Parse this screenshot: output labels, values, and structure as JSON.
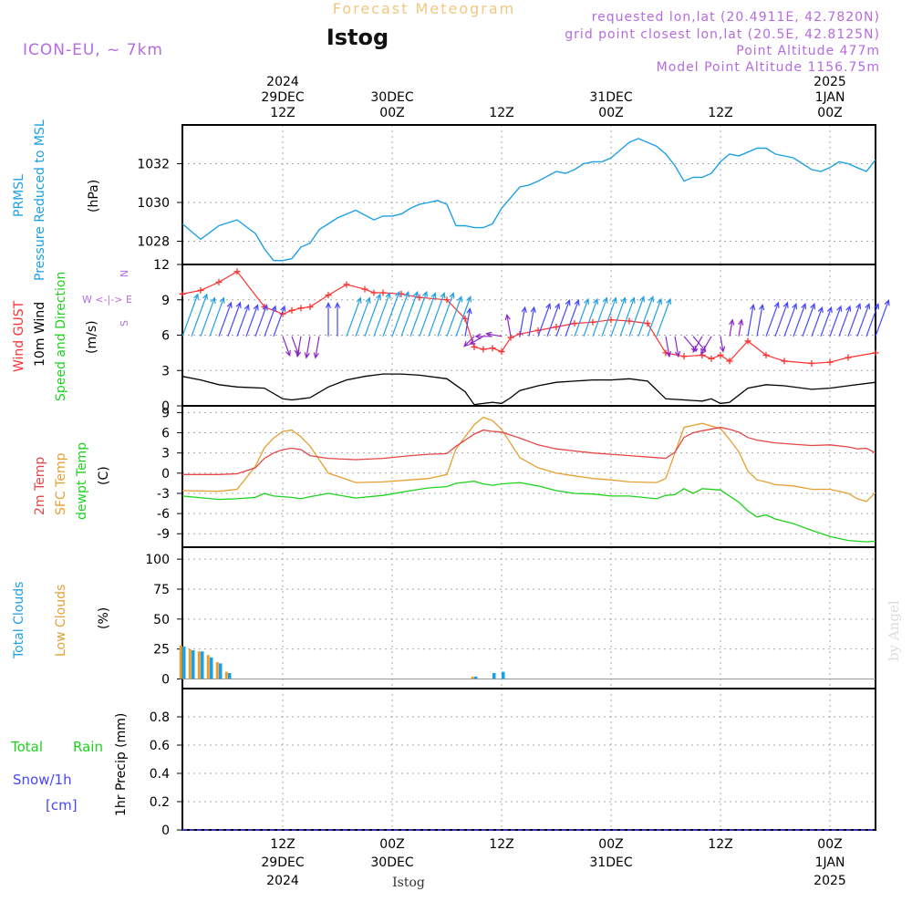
{
  "header": {
    "title": "Forecast Meteogram",
    "station": "Istog",
    "model": "ICON-EU, ~ 7km",
    "requested": "requested lon,lat (20.4911E, 42.7820N)",
    "grid_point": "grid point closest lon,lat (20.5E, 42.8125N)",
    "point_altitude": "Point Altitude 477m",
    "model_altitude": "Model Point Altitude 1156.75m",
    "footer_station": "Istog",
    "credit": "by Angel"
  },
  "time_axis": {
    "top_ticks": [
      {
        "h": 12,
        "lines": [
          "2024",
          "29DEC",
          "12Z"
        ]
      },
      {
        "h": 24,
        "lines": [
          "30DEC",
          "00Z"
        ]
      },
      {
        "h": 36,
        "lines": [
          "12Z"
        ]
      },
      {
        "h": 48,
        "lines": [
          "31DEC",
          "00Z"
        ]
      },
      {
        "h": 60,
        "lines": [
          "12Z"
        ]
      },
      {
        "h": 72,
        "lines": [
          "2025",
          "1JAN",
          "00Z"
        ]
      }
    ],
    "bottom_ticks": [
      {
        "h": 12,
        "lines": [
          "12Z",
          "29DEC",
          "2024"
        ]
      },
      {
        "h": 24,
        "lines": [
          "00Z",
          "30DEC"
        ]
      },
      {
        "h": 36,
        "lines": [
          "12Z"
        ]
      },
      {
        "h": 48,
        "lines": [
          "00Z",
          "31DEC"
        ]
      },
      {
        "h": 60,
        "lines": [
          "12Z"
        ]
      },
      {
        "h": 72,
        "lines": [
          "00Z",
          "1JAN",
          "2025"
        ]
      }
    ],
    "start_hour": 1,
    "end_hour": 77
  },
  "colors": {
    "pressure": "#1ea0e6",
    "gust": "#ff3030",
    "wind": "#000000",
    "temp2m": "#e64646",
    "sfc_temp": "#e6a032",
    "dewpoint": "#1ed21e",
    "total_clouds": "#1ea0e6",
    "low_clouds": "#e6a032",
    "rain": "#1ed21e",
    "snow": "#4646ff",
    "direction_label": "#b56be0"
  },
  "panels": {
    "pressure": {
      "labels": [
        "PRMSL",
        "Pressure Reduced to MSL",
        "(hPa)"
      ]
    },
    "wind": {
      "labels": [
        "Wind GUST",
        "10m Wind",
        "Speed and Direction",
        "(m/s)"
      ],
      "compass": [
        "N",
        "W <-|-> E",
        "S"
      ]
    },
    "temperature": {
      "labels": [
        "2m Temp",
        "SFC Temp",
        "dewpt Temp",
        "(C)"
      ]
    },
    "clouds": {
      "labels": [
        "Total Clouds",
        "Low Clouds",
        "(%)"
      ]
    },
    "precip": {
      "labels": [
        "Total",
        "Rain",
        "Snow/1h",
        "[cm]",
        "1hr Precip (mm)"
      ]
    }
  },
  "chart_data": [
    {
      "type": "line",
      "name": "PRMSL",
      "ylabel": "(hPa)",
      "ylim": [
        1026.8,
        1034
      ],
      "yticks": [
        1028,
        1030,
        1032
      ],
      "x": [
        1,
        3,
        5,
        7,
        9,
        10,
        11,
        12,
        13,
        14,
        15,
        16,
        17,
        18,
        20,
        22,
        23,
        24,
        25,
        26,
        27,
        28,
        29,
        30,
        31,
        32,
        33,
        34,
        35,
        36,
        38,
        39,
        40,
        42,
        43,
        44,
        45,
        46,
        47,
        48,
        49,
        50,
        51,
        52,
        53,
        54,
        55,
        56,
        57,
        58,
        59,
        60,
        61,
        62,
        63,
        64,
        65,
        66,
        67,
        68,
        69,
        70,
        71,
        72,
        73,
        74,
        75,
        76,
        77
      ],
      "series": [
        {
          "name": "PRMSL",
          "values": [
            1028.9,
            1028.1,
            1028.8,
            1029.1,
            1028.4,
            1027.6,
            1027.0,
            1027.0,
            1027.1,
            1027.7,
            1027.9,
            1028.6,
            1028.9,
            1029.2,
            1029.6,
            1029.1,
            1029.3,
            1029.3,
            1029.4,
            1029.7,
            1029.9,
            1030.0,
            1030.1,
            1029.9,
            1028.8,
            1028.8,
            1028.7,
            1028.7,
            1028.9,
            1029.7,
            1030.8,
            1030.9,
            1031.1,
            1031.6,
            1031.5,
            1031.7,
            1032.0,
            1032.1,
            1032.1,
            1032.3,
            1032.7,
            1033.1,
            1033.3,
            1033.1,
            1032.9,
            1032.5,
            1031.9,
            1031.1,
            1031.3,
            1031.3,
            1031.5,
            1032.1,
            1032.5,
            1032.4,
            1032.6,
            1032.8,
            1032.8,
            1032.5,
            1032.4,
            1032.3,
            1032.0,
            1031.7,
            1031.6,
            1031.8,
            1032.1,
            1032.0,
            1031.8,
            1031.6,
            1032.2
          ]
        }
      ]
    },
    {
      "type": "line",
      "name": "wind",
      "ylabel": "(m/s)",
      "ylim": [
        0,
        12
      ],
      "yticks": [
        0,
        3,
        6,
        9,
        12
      ],
      "x": [
        1,
        3,
        5,
        7,
        10,
        12,
        13,
        14,
        15,
        17,
        19,
        21,
        22,
        23,
        25,
        27,
        30,
        32,
        33,
        34,
        35,
        36,
        37,
        38,
        40,
        42,
        44,
        46,
        48,
        50,
        52,
        54,
        56,
        58,
        59,
        60,
        61,
        63,
        65,
        67,
        70,
        72,
        74,
        77
      ],
      "series": [
        {
          "name": "Wind GUST",
          "values": [
            9.5,
            9.8,
            10.5,
            11.4,
            8.4,
            7.8,
            8.1,
            8.3,
            8.4,
            9.4,
            10.3,
            9.9,
            9.6,
            9.6,
            9.5,
            9.2,
            9.0,
            7.4,
            5.0,
            4.8,
            4.9,
            4.6,
            5.8,
            6.1,
            6.4,
            6.7,
            7.0,
            7.1,
            7.3,
            7.2,
            7.0,
            4.5,
            4.2,
            4.3,
            4.0,
            4.3,
            3.8,
            5.5,
            4.3,
            3.8,
            3.6,
            3.7,
            4.1,
            4.5
          ]
        },
        {
          "name": "10m Wind",
          "values": [
            2.5,
            2.2,
            1.8,
            1.6,
            1.5,
            0.6,
            0.5,
            0.6,
            0.7,
            1.6,
            2.2,
            2.5,
            2.6,
            2.7,
            2.7,
            2.6,
            2.3,
            1.2,
            0.1,
            0.2,
            0.3,
            0.2,
            0.7,
            1.3,
            1.7,
            2.0,
            2.1,
            2.2,
            2.2,
            2.3,
            2.1,
            0.6,
            0.5,
            0.4,
            0.6,
            0.2,
            0.3,
            1.5,
            1.8,
            1.7,
            1.4,
            1.5,
            1.7,
            2.0
          ]
        }
      ],
      "direction_deg": [
        200,
        200,
        200,
        200,
        200,
        340,
        340,
        10,
        10,
        180,
        200,
        200,
        200,
        200,
        200,
        200,
        200,
        190,
        45,
        60,
        90,
        100,
        170,
        190,
        200,
        200,
        200,
        200,
        200,
        200,
        200,
        350,
        320,
        30,
        30,
        350,
        190,
        190,
        200,
        200,
        200,
        200,
        200,
        200
      ]
    },
    {
      "type": "line",
      "name": "temperature",
      "ylabel": "(C)",
      "ylim": [
        -11,
        10
      ],
      "yticks": [
        -9,
        -6,
        -3,
        0,
        3,
        6,
        9
      ],
      "x": [
        1,
        5,
        7,
        9,
        10,
        11,
        12,
        13,
        14,
        15,
        17,
        20,
        23,
        26,
        28,
        30,
        31,
        33,
        34,
        35,
        36,
        38,
        40,
        42,
        44,
        46,
        48,
        50,
        53,
        54,
        55,
        56,
        57,
        58,
        60,
        61,
        62,
        63,
        64,
        65,
        66,
        68,
        70,
        72,
        74,
        75,
        76,
        77
      ],
      "series": [
        {
          "name": "2m Temp",
          "values": [
            -0.2,
            -0.2,
            -0.1,
            0.8,
            2.2,
            3.0,
            3.5,
            3.7,
            3.5,
            2.6,
            2.2,
            2.0,
            2.2,
            2.6,
            2.8,
            2.9,
            4.0,
            5.8,
            6.4,
            6.2,
            6.1,
            5.2,
            4.2,
            3.6,
            3.3,
            3.0,
            2.8,
            2.6,
            2.3,
            2.2,
            3.1,
            5.3,
            6.0,
            6.3,
            6.8,
            6.5,
            6.1,
            5.3,
            4.9,
            4.7,
            4.5,
            4.3,
            4.1,
            4.2,
            3.9,
            3.6,
            3.7,
            3.0
          ]
        },
        {
          "name": "SFC Temp",
          "values": [
            -2.6,
            -2.7,
            -2.4,
            1.0,
            3.8,
            5.2,
            6.2,
            6.4,
            5.4,
            4.0,
            0.0,
            -1.4,
            -1.3,
            -1.0,
            -0.8,
            -0.2,
            3.6,
            7.2,
            8.3,
            7.8,
            6.5,
            2.3,
            0.8,
            0.0,
            -0.4,
            -0.8,
            -1.0,
            -1.3,
            -1.4,
            -0.8,
            3.0,
            6.8,
            7.1,
            7.4,
            6.6,
            5.0,
            3.2,
            0.3,
            -1.0,
            -1.3,
            -1.7,
            -1.9,
            -2.4,
            -2.4,
            -3.0,
            -3.8,
            -4.2,
            -2.9
          ]
        },
        {
          "name": "dewpt Temp",
          "values": [
            -3.4,
            -3.9,
            -3.8,
            -3.6,
            -3.0,
            -3.4,
            -3.5,
            -3.6,
            -3.8,
            -3.5,
            -3.0,
            -3.7,
            -3.3,
            -2.6,
            -2.2,
            -2.0,
            -1.5,
            -1.2,
            -1.6,
            -1.8,
            -1.6,
            -1.4,
            -1.9,
            -2.6,
            -3.0,
            -3.1,
            -3.4,
            -3.4,
            -3.8,
            -3.3,
            -3.2,
            -2.3,
            -3.0,
            -2.3,
            -2.5,
            -3.4,
            -4.3,
            -5.6,
            -6.5,
            -6.2,
            -6.8,
            -7.5,
            -8.5,
            -9.4,
            -10.0,
            -10.1,
            -10.2,
            -10.1
          ]
        }
      ]
    },
    {
      "type": "bar",
      "name": "clouds",
      "ylabel": "(%)",
      "ylim": [
        -8,
        110
      ],
      "yticks": [
        0,
        25,
        50,
        75,
        100
      ],
      "x": [
        1,
        2,
        3,
        4,
        5,
        6,
        33,
        35,
        36
      ],
      "series": [
        {
          "name": "Total Clouds",
          "values": [
            27,
            24,
            23,
            18,
            13,
            5,
            2,
            5,
            6
          ]
        },
        {
          "name": "Low Clouds",
          "values": [
            28,
            25,
            23,
            20,
            14,
            6,
            2,
            0,
            0
          ]
        }
      ]
    },
    {
      "type": "line",
      "name": "precip",
      "ylabel": "1hr Precip (mm)",
      "ylim": [
        0,
        1.0
      ],
      "yticks": [
        0,
        0.2,
        0.4,
        0.6,
        0.8
      ],
      "series": [
        {
          "name": "Total",
          "values": [
            0,
            0
          ]
        }
      ]
    }
  ]
}
